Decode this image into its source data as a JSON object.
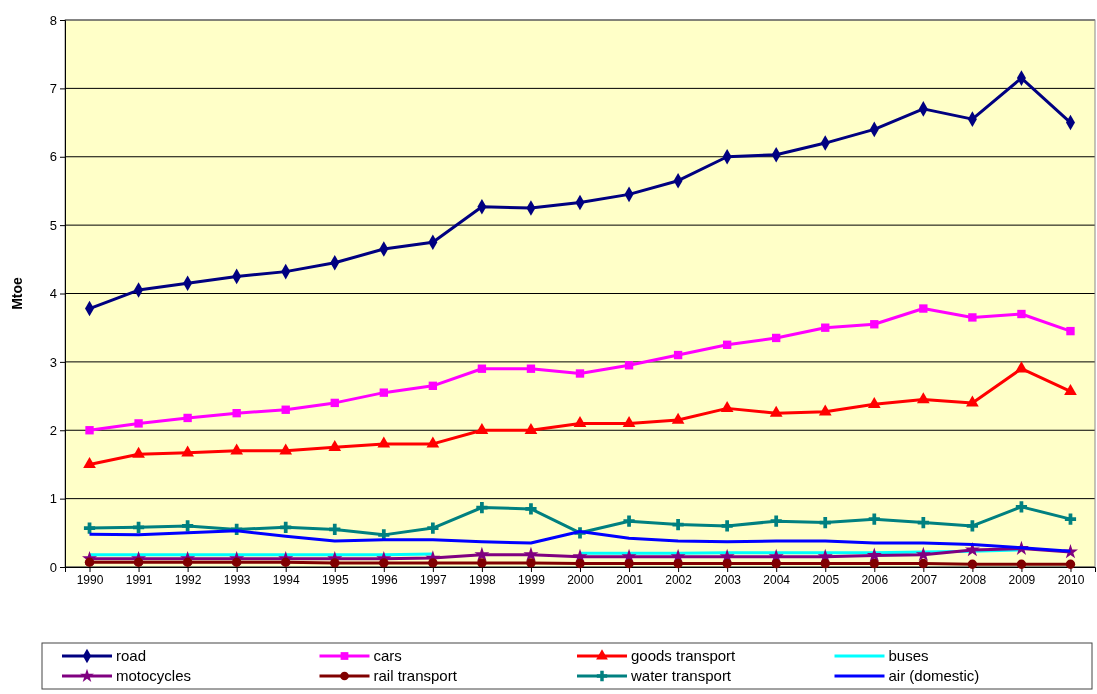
{
  "chart_data": {
    "type": "line",
    "ylabel": "Mtoe",
    "categories": [
      "1990",
      "1991",
      "1992",
      "1993",
      "1994",
      "1995",
      "1996",
      "1997",
      "1998",
      "1999",
      "2000",
      "2001",
      "2002",
      "2003",
      "2004",
      "2005",
      "2006",
      "2007",
      "2008",
      "2009",
      "2010"
    ],
    "ylim": [
      0,
      8
    ],
    "yticks": [
      0,
      1,
      2,
      3,
      4,
      5,
      6,
      7,
      8
    ],
    "grid": "y",
    "legend": "bottom",
    "series": [
      {
        "name": "road",
        "color": "#000080",
        "marker": "diamond",
        "values": [
          3.78,
          4.05,
          4.15,
          4.25,
          4.32,
          4.45,
          4.65,
          4.75,
          5.27,
          5.25,
          5.33,
          5.45,
          5.65,
          6.0,
          6.03,
          6.2,
          6.4,
          6.7,
          6.55,
          7.15,
          6.5
        ]
      },
      {
        "name": "cars",
        "color": "#ff00ff",
        "marker": "square",
        "values": [
          2.0,
          2.1,
          2.18,
          2.25,
          2.3,
          2.4,
          2.55,
          2.65,
          2.9,
          2.9,
          2.83,
          2.95,
          3.1,
          3.25,
          3.35,
          3.5,
          3.55,
          3.78,
          3.65,
          3.7,
          3.45
        ]
      },
      {
        "name": "goods transport",
        "color": "#ff0000",
        "marker": "triangle",
        "values": [
          1.5,
          1.65,
          1.67,
          1.7,
          1.7,
          1.75,
          1.8,
          1.8,
          2.0,
          2.0,
          2.1,
          2.1,
          2.15,
          2.32,
          2.25,
          2.27,
          2.38,
          2.45,
          2.4,
          2.9,
          2.57
        ]
      },
      {
        "name": "buses",
        "color": "#00ffff",
        "marker": "none",
        "values": [
          0.18,
          0.18,
          0.18,
          0.18,
          0.18,
          0.18,
          0.18,
          0.19,
          null,
          null,
          0.2,
          0.2,
          0.2,
          0.21,
          0.21,
          0.21,
          0.21,
          0.22,
          0.23,
          0.25,
          null
        ]
      },
      {
        "name": "motocycles",
        "color": "#800080",
        "marker": "star",
        "values": [
          0.12,
          0.12,
          0.12,
          0.12,
          0.12,
          0.12,
          0.12,
          0.13,
          0.18,
          0.18,
          0.15,
          0.15,
          0.15,
          0.15,
          0.15,
          0.15,
          0.17,
          0.18,
          0.25,
          0.27,
          0.22
        ]
      },
      {
        "name": "rail transport",
        "color": "#800000",
        "marker": "circle",
        "values": [
          0.07,
          0.07,
          0.07,
          0.07,
          0.07,
          0.06,
          0.06,
          0.06,
          0.06,
          0.06,
          0.05,
          0.05,
          0.05,
          0.05,
          0.05,
          0.05,
          0.05,
          0.05,
          0.04,
          0.04,
          0.04
        ]
      },
      {
        "name": "water transport",
        "color": "#008080",
        "marker": "cross",
        "values": [
          0.57,
          0.58,
          0.6,
          0.55,
          0.58,
          0.55,
          0.47,
          0.57,
          0.87,
          0.85,
          0.5,
          0.67,
          0.62,
          0.6,
          0.67,
          0.65,
          0.7,
          0.65,
          0.6,
          0.88,
          0.7
        ]
      },
      {
        "name": "air (domestic)",
        "color": "#0000ff",
        "marker": "none",
        "values": [
          0.48,
          0.47,
          0.5,
          0.53,
          0.45,
          0.38,
          0.4,
          0.4,
          0.37,
          0.35,
          0.52,
          0.42,
          0.38,
          0.37,
          0.38,
          0.38,
          0.35,
          0.35,
          0.33,
          0.28,
          0.23
        ]
      }
    ]
  }
}
